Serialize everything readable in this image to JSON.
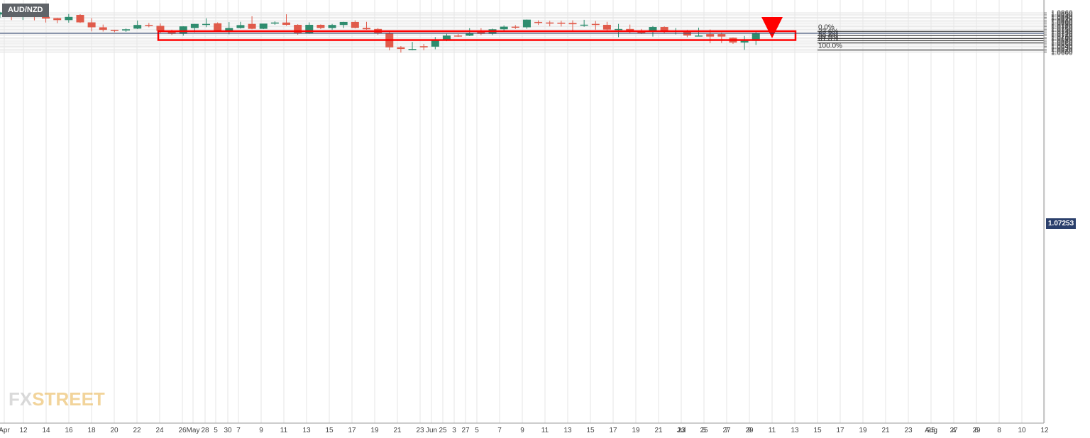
{
  "symbol": "AUD/NZD",
  "current_price_label": "1.07253",
  "logo": {
    "prefix": "FX",
    "suffix": "STREET"
  },
  "chart_data": {
    "type": "candlestick",
    "y_axis": {
      "ylim": [
        1.0596,
        1.0866
      ],
      "ticks": [
        "1.0600",
        "1.0610",
        "1.0620",
        "1.0630",
        "1.0640",
        "1.0650",
        "1.0660",
        "1.0670",
        "1.0680",
        "1.0690",
        "1.0700",
        "1.0710",
        "1.0720",
        "1.0730",
        "1.0740",
        "1.0750",
        "1.0760",
        "1.0770",
        "1.0780",
        "1.0790",
        "1.0800",
        "1.0810",
        "1.0820",
        "1.0830",
        "1.0840",
        "1.0850",
        "1.0860"
      ]
    },
    "x_axis": {
      "labels": [
        "Apr",
        "12",
        "14",
        "16",
        "18",
        "20",
        "22",
        "24",
        "26",
        "28",
        "30",
        "May",
        "5",
        "7",
        "9",
        "11",
        "13",
        "15",
        "17",
        "19",
        "21",
        "23",
        "25",
        "27",
        "Jun",
        "3",
        "5",
        "7",
        "9",
        "11",
        "13",
        "15",
        "17",
        "19",
        "21",
        "23",
        "25",
        "27",
        "29",
        "Jul",
        "5",
        "7",
        "9",
        "11",
        "13",
        "15",
        "17",
        "19",
        "21",
        "23",
        "25",
        "27",
        "29",
        "Aug",
        "4",
        "6",
        "8",
        "10",
        "12"
      ]
    },
    "candles": [
      {
        "o": 1.0849,
        "h": 1.0866,
        "l": 1.0828,
        "c": 1.0862
      },
      {
        "o": 1.0849,
        "h": 1.0853,
        "l": 1.0812,
        "c": 1.0837
      },
      {
        "o": 1.0838,
        "h": 1.0851,
        "l": 1.0813,
        "c": 1.0843
      },
      {
        "o": 1.0843,
        "h": 1.0859,
        "l": 1.081,
        "c": 1.0834
      },
      {
        "o": 1.0834,
        "h": 1.084,
        "l": 1.0796,
        "c": 1.0822
      },
      {
        "o": 1.0825,
        "h": 1.0827,
        "l": 1.0792,
        "c": 1.0812
      },
      {
        "o": 1.0812,
        "h": 1.0852,
        "l": 1.0795,
        "c": 1.0833
      },
      {
        "o": 1.0846,
        "h": 1.0851,
        "l": 1.0794,
        "c": 1.0797
      },
      {
        "o": 1.0797,
        "h": 1.0825,
        "l": 1.0738,
        "c": 1.0765
      },
      {
        "o": 1.0765,
        "h": 1.0783,
        "l": 1.0737,
        "c": 1.0748
      },
      {
        "o": 1.0748,
        "h": 1.0749,
        "l": 1.0733,
        "c": 1.0745
      },
      {
        "o": 1.0744,
        "h": 1.0757,
        "l": 1.0735,
        "c": 1.0752
      },
      {
        "o": 1.0756,
        "h": 1.0809,
        "l": 1.0753,
        "c": 1.078
      },
      {
        "o": 1.078,
        "h": 1.0793,
        "l": 1.0765,
        "c": 1.0776
      },
      {
        "o": 1.0774,
        "h": 1.079,
        "l": 1.0725,
        "c": 1.0742
      },
      {
        "o": 1.0742,
        "h": 1.0749,
        "l": 1.0715,
        "c": 1.0722
      },
      {
        "o": 1.0722,
        "h": 1.0772,
        "l": 1.071,
        "c": 1.0771
      },
      {
        "o": 1.076,
        "h": 1.0787,
        "l": 1.0732,
        "c": 1.0787
      },
      {
        "o": 1.0781,
        "h": 1.0824,
        "l": 1.0766,
        "c": 1.0787
      },
      {
        "o": 1.0791,
        "h": 1.0797,
        "l": 1.0735,
        "c": 1.0741
      },
      {
        "o": 1.0741,
        "h": 1.0799,
        "l": 1.0719,
        "c": 1.076
      },
      {
        "o": 1.076,
        "h": 1.0801,
        "l": 1.0756,
        "c": 1.0779
      },
      {
        "o": 1.0787,
        "h": 1.0837,
        "l": 1.0752,
        "c": 1.0755
      },
      {
        "o": 1.0755,
        "h": 1.0787,
        "l": 1.0753,
        "c": 1.0789
      },
      {
        "o": 1.0789,
        "h": 1.0804,
        "l": 1.0781,
        "c": 1.0796
      },
      {
        "o": 1.0796,
        "h": 1.085,
        "l": 1.0775,
        "c": 1.0781
      },
      {
        "o": 1.0781,
        "h": 1.0785,
        "l": 1.0716,
        "c": 1.0725
      },
      {
        "o": 1.0725,
        "h": 1.0797,
        "l": 1.0722,
        "c": 1.0781
      },
      {
        "o": 1.0781,
        "h": 1.0784,
        "l": 1.0753,
        "c": 1.076
      },
      {
        "o": 1.076,
        "h": 1.0787,
        "l": 1.0749,
        "c": 1.078
      },
      {
        "o": 1.078,
        "h": 1.0801,
        "l": 1.076,
        "c": 1.08
      },
      {
        "o": 1.08,
        "h": 1.081,
        "l": 1.0757,
        "c": 1.0761
      },
      {
        "o": 1.0761,
        "h": 1.0801,
        "l": 1.0749,
        "c": 1.0752
      },
      {
        "o": 1.0754,
        "h": 1.076,
        "l": 1.0716,
        "c": 1.0724
      },
      {
        "o": 1.0724,
        "h": 1.0737,
        "l": 1.0614,
        "c": 1.0634
      },
      {
        "o": 1.0634,
        "h": 1.0642,
        "l": 1.0599,
        "c": 1.0623
      },
      {
        "o": 1.0623,
        "h": 1.0669,
        "l": 1.0614,
        "c": 1.0623
      },
      {
        "o": 1.0641,
        "h": 1.0656,
        "l": 1.0615,
        "c": 1.0638
      },
      {
        "o": 1.0638,
        "h": 1.0701,
        "l": 1.0621,
        "c": 1.0684
      },
      {
        "o": 1.0684,
        "h": 1.0722,
        "l": 1.0674,
        "c": 1.0711
      },
      {
        "o": 1.0711,
        "h": 1.0721,
        "l": 1.0702,
        "c": 1.071
      },
      {
        "o": 1.071,
        "h": 1.0759,
        "l": 1.0707,
        "c": 1.0726
      },
      {
        "o": 1.074,
        "h": 1.0759,
        "l": 1.0714,
        "c": 1.0722
      },
      {
        "o": 1.0722,
        "h": 1.0756,
        "l": 1.0714,
        "c": 1.0752
      },
      {
        "o": 1.0752,
        "h": 1.0777,
        "l": 1.0741,
        "c": 1.0769
      },
      {
        "o": 1.0769,
        "h": 1.0779,
        "l": 1.0754,
        "c": 1.0765
      },
      {
        "o": 1.0765,
        "h": 1.0816,
        "l": 1.0755,
        "c": 1.0815
      },
      {
        "o": 1.08,
        "h": 1.081,
        "l": 1.078,
        "c": 1.0796
      },
      {
        "o": 1.0796,
        "h": 1.0807,
        "l": 1.0771,
        "c": 1.0795
      },
      {
        "o": 1.0795,
        "h": 1.0807,
        "l": 1.077,
        "c": 1.0793
      },
      {
        "o": 1.0793,
        "h": 1.081,
        "l": 1.0743,
        "c": 1.0785
      },
      {
        "o": 1.078,
        "h": 1.0814,
        "l": 1.0768,
        "c": 1.0782
      },
      {
        "o": 1.0787,
        "h": 1.0806,
        "l": 1.0749,
        "c": 1.0781
      },
      {
        "o": 1.0781,
        "h": 1.0801,
        "l": 1.0746,
        "c": 1.075
      },
      {
        "o": 1.075,
        "h": 1.0787,
        "l": 1.07,
        "c": 1.0754
      },
      {
        "o": 1.0754,
        "h": 1.0783,
        "l": 1.0724,
        "c": 1.074
      },
      {
        "o": 1.074,
        "h": 1.0754,
        "l": 1.0721,
        "c": 1.0727
      },
      {
        "o": 1.0742,
        "h": 1.0773,
        "l": 1.0704,
        "c": 1.0767
      },
      {
        "o": 1.0767,
        "h": 1.0771,
        "l": 1.0726,
        "c": 1.0742
      },
      {
        "o": 1.0743,
        "h": 1.076,
        "l": 1.0718,
        "c": 1.0743
      },
      {
        "o": 1.0743,
        "h": 1.0748,
        "l": 1.07,
        "c": 1.0711
      },
      {
        "o": 1.0711,
        "h": 1.0763,
        "l": 1.0705,
        "c": 1.0711
      },
      {
        "o": 1.072,
        "h": 1.0751,
        "l": 1.0661,
        "c": 1.0704
      },
      {
        "o": 1.072,
        "h": 1.0731,
        "l": 1.0662,
        "c": 1.0704
      },
      {
        "o": 1.0696,
        "h": 1.0698,
        "l": 1.0656,
        "c": 1.0665
      },
      {
        "o": 1.0665,
        "h": 1.0708,
        "l": 1.0617,
        "c": 1.0676
      },
      {
        "o": 1.0676,
        "h": 1.0738,
        "l": 1.0649,
        "c": 1.0726
      }
    ],
    "support_resistance_zone": {
      "top": 1.073,
      "bottom": 1.0723
    },
    "current_price": 1.07253,
    "fibonacci_levels": [
      {
        "label": "0.0%",
        "price": 1.0738
      },
      {
        "label": "23.6%",
        "price": 1.0709
      },
      {
        "label": "38.2%",
        "price": 1.0691
      },
      {
        "label": "50.0%",
        "price": 1.0677
      },
      {
        "label": "61.8%",
        "price": 1.0662
      },
      {
        "label": "100.0%",
        "price": 1.0616
      }
    ],
    "arrow": {
      "from": 1.0734,
      "to": 1.0693,
      "direction": "down"
    },
    "grid": true,
    "colors": {
      "bull": "#2e8c6e",
      "bear": "#e05a4a",
      "zone": "#ff0000",
      "arrow": "#ff0000",
      "price_line": "#2a3f6b",
      "grid": "#e6e6e6",
      "axis_text": "#444444"
    }
  }
}
